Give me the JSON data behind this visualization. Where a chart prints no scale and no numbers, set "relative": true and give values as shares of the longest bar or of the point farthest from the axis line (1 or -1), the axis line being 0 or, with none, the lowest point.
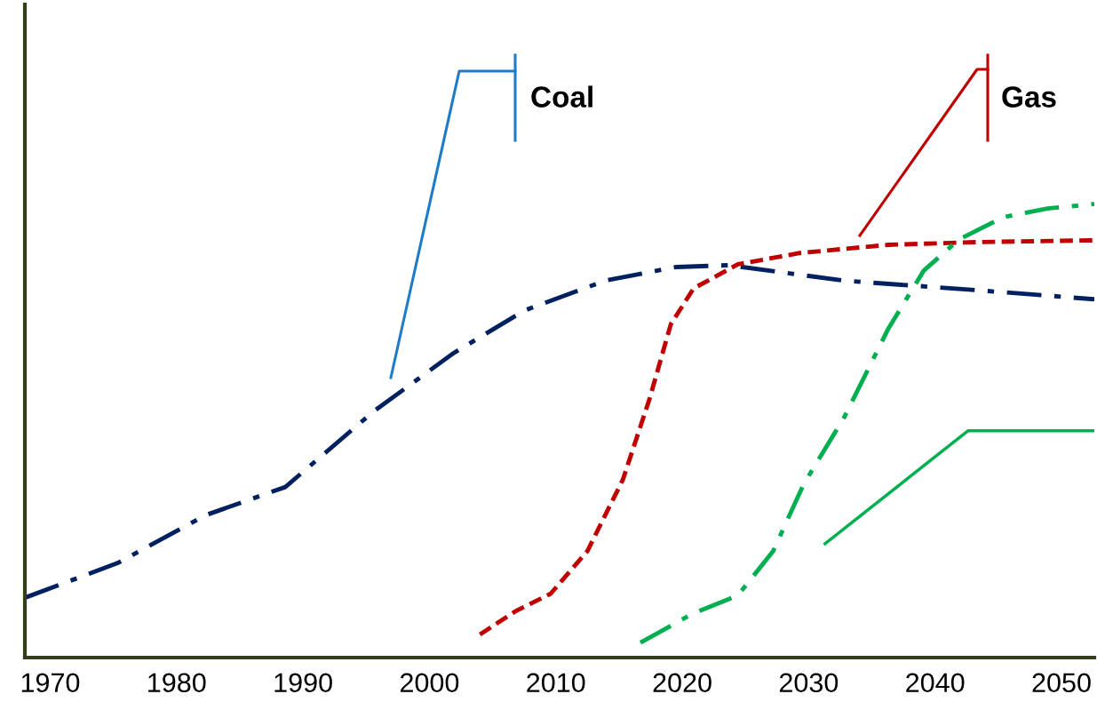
{
  "chart_data": {
    "type": "line",
    "relative": true,
    "grid": false,
    "marker": "none",
    "xlim": [
      1968,
      2052.6
    ],
    "xticks": [
      1970,
      1980,
      1990,
      2000,
      2010,
      2020,
      2030,
      2040,
      2050
    ],
    "series": [
      {
        "color": "#002060",
        "line_style": "dashdot",
        "x": [
          1968.1,
          1975.3,
          1982.3,
          1988.6,
          1995.6,
          2001.9,
          2007.5,
          2013.9,
          2019.5,
          2023.7,
          2032.8,
          2043.3,
          2052.6
        ],
        "values": [
          0.133,
          0.208,
          0.314,
          0.376,
          0.543,
          0.671,
          0.765,
          0.831,
          0.861,
          0.865,
          0.831,
          0.81,
          0.79
        ]
      },
      {
        "color": "#c00000",
        "line_style": "dashed",
        "x": [
          2004.0,
          2006.8,
          2009.6,
          2012.5,
          2015.3,
          2017.4,
          2019.1,
          2020.9,
          2024.4,
          2029.3,
          2036.3,
          2043.3,
          2052.6
        ],
        "values": [
          0.051,
          0.102,
          0.141,
          0.235,
          0.392,
          0.569,
          0.735,
          0.814,
          0.867,
          0.892,
          0.91,
          0.916,
          0.92
        ]
      },
      {
        "color": "#00b050",
        "line_style": "dashdot",
        "x": [
          2016.7,
          2020.9,
          2024.4,
          2027.2,
          2029.6,
          2032.8,
          2036.3,
          2039.1,
          2041.9,
          2045.4,
          2048.9,
          2052.6
        ],
        "values": [
          0.033,
          0.098,
          0.137,
          0.235,
          0.382,
          0.529,
          0.725,
          0.853,
          0.922,
          0.971,
          0.99,
          1.0
        ]
      },
      {
        "color": "#00b050",
        "line_style": "solid",
        "x": [
          2031.3,
          2042.6,
          2052.6
        ],
        "values": [
          0.251,
          0.5,
          0.5
        ]
      }
    ],
    "annotations": [
      "Coal",
      "Gas"
    ]
  }
}
